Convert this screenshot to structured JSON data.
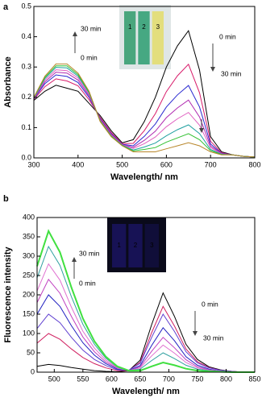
{
  "chart_data": [
    {
      "type": "line",
      "panel_label": "a",
      "xlabel": "Wavelength/ nm",
      "ylabel": "Absorbance",
      "annotations": [
        "30 min",
        "0 min",
        "0 min",
        "30 min"
      ],
      "inset_labels": [
        "1",
        "2",
        "3"
      ],
      "xlim": [
        300,
        800
      ],
      "xticks": [
        300,
        400,
        500,
        600,
        700,
        800
      ],
      "ylim": [
        0,
        0.5
      ],
      "yticks": [
        {
          "value": 0,
          "label": "0.0"
        },
        0.1,
        0.2,
        0.3,
        0.4,
        0.5
      ],
      "x": [
        300,
        325,
        350,
        375,
        400,
        425,
        450,
        475,
        500,
        525,
        550,
        575,
        600,
        625,
        650,
        675,
        700,
        725,
        750,
        775,
        800
      ],
      "series": [
        {
          "color": "#000000",
          "values": [
            0.19,
            0.22,
            0.24,
            0.23,
            0.22,
            0.18,
            0.14,
            0.09,
            0.05,
            0.06,
            0.12,
            0.2,
            0.3,
            0.37,
            0.42,
            0.29,
            0.07,
            0.02,
            0.01,
            0.005,
            0.003
          ]
        },
        {
          "color": "#d81b6a",
          "values": [
            0.193,
            0.235,
            0.261,
            0.254,
            0.238,
            0.192,
            0.134,
            0.084,
            0.047,
            0.048,
            0.09,
            0.146,
            0.219,
            0.271,
            0.309,
            0.215,
            0.055,
            0.017,
            0.01,
            0.005,
            0.003
          ]
        },
        {
          "color": "#2a2ad0",
          "values": [
            0.195,
            0.245,
            0.274,
            0.269,
            0.249,
            0.2,
            0.13,
            0.08,
            0.045,
            0.04,
            0.071,
            0.112,
            0.168,
            0.208,
            0.239,
            0.168,
            0.046,
            0.015,
            0.01,
            0.005,
            0.003
          ]
        },
        {
          "color": "#b02ab0",
          "values": [
            0.196,
            0.251,
            0.283,
            0.28,
            0.257,
            0.205,
            0.128,
            0.078,
            0.044,
            0.035,
            0.058,
            0.088,
            0.133,
            0.165,
            0.191,
            0.135,
            0.039,
            0.014,
            0.01,
            0.005,
            0.003
          ]
        },
        {
          "color": "#e060c0",
          "values": [
            0.197,
            0.257,
            0.291,
            0.288,
            0.264,
            0.209,
            0.125,
            0.075,
            0.043,
            0.031,
            0.047,
            0.069,
            0.103,
            0.129,
            0.15,
            0.108,
            0.034,
            0.013,
            0.01,
            0.005,
            0.003
          ]
        },
        {
          "color": "#20a0a0",
          "values": [
            0.198,
            0.262,
            0.299,
            0.297,
            0.27,
            0.214,
            0.123,
            0.073,
            0.042,
            0.026,
            0.036,
            0.049,
            0.073,
            0.093,
            0.109,
            0.08,
            0.028,
            0.012,
            0.01,
            0.005,
            0.003
          ]
        },
        {
          "color": "#30c030",
          "values": [
            0.199,
            0.266,
            0.304,
            0.304,
            0.275,
            0.217,
            0.122,
            0.072,
            0.041,
            0.023,
            0.028,
            0.034,
            0.052,
            0.066,
            0.08,
            0.06,
            0.024,
            0.011,
            0.01,
            0.005,
            0.003
          ]
        },
        {
          "color": "#b8862a",
          "values": [
            0.2,
            0.27,
            0.31,
            0.31,
            0.28,
            0.22,
            0.12,
            0.07,
            0.04,
            0.02,
            0.02,
            0.02,
            0.03,
            0.04,
            0.05,
            0.04,
            0.02,
            0.01,
            0.01,
            0.005,
            0.003
          ]
        }
      ]
    },
    {
      "type": "line",
      "panel_label": "b",
      "xlabel": "Wavelength/ nm",
      "ylabel": "Fluorescence intensity",
      "annotations": [
        "30 min",
        "0 min",
        "0 min",
        "30 min"
      ],
      "inset_labels": [
        "1",
        "2",
        "3"
      ],
      "xlim": [
        470,
        850
      ],
      "xticks": [
        500,
        550,
        600,
        650,
        700,
        750,
        800,
        850
      ],
      "ylim": [
        0,
        400
      ],
      "yticks": [
        0,
        50,
        100,
        150,
        200,
        250,
        300,
        350,
        400
      ],
      "x": [
        470,
        490,
        510,
        530,
        550,
        570,
        590,
        610,
        630,
        650,
        670,
        690,
        710,
        730,
        750,
        770,
        790,
        810,
        830,
        850
      ],
      "series": [
        {
          "color": "#000000",
          "values": [
            15,
            20,
            17,
            12,
            8,
            4,
            2,
            1,
            4,
            31,
            123,
            205,
            144,
            72,
            33,
            14,
            6,
            2,
            0,
            0
          ]
        },
        {
          "color": "#d02060",
          "values": [
            75,
            100,
            85,
            60,
            38,
            22,
            11,
            4,
            4,
            26,
            102,
            170,
            119,
            60,
            27,
            12,
            5,
            2,
            0,
            0
          ]
        },
        {
          "color": "#6040d0",
          "values": [
            113,
            150,
            128,
            90,
            57,
            33,
            17,
            6,
            5,
            23,
            90,
            150,
            105,
            53,
            24,
            11,
            5,
            2,
            0,
            0
          ]
        },
        {
          "color": "#2020c0",
          "values": [
            150,
            200,
            170,
            120,
            76,
            44,
            22,
            8,
            4,
            17,
            69,
            115,
            81,
            40,
            18,
            8,
            3,
            1,
            0,
            0
          ]
        },
        {
          "color": "#c040c0",
          "values": [
            180,
            240,
            204,
            144,
            91,
            53,
            26,
            10,
            4,
            14,
            54,
            90,
            63,
            32,
            14,
            6,
            3,
            1,
            0,
            0
          ]
        },
        {
          "color": "#e070d0",
          "values": [
            210,
            280,
            238,
            168,
            106,
            62,
            31,
            11,
            4,
            11,
            42,
            70,
            49,
            25,
            11,
            5,
            2,
            1,
            0,
            0
          ]
        },
        {
          "color": "#30a0a0",
          "values": [
            244,
            325,
            276,
            195,
            124,
            72,
            36,
            13,
            4,
            8,
            30,
            50,
            35,
            18,
            8,
            4,
            2,
            1,
            0,
            0
          ]
        },
        {
          "color": "#40e040",
          "values": [
            274,
            365,
            310,
            219,
            139,
            80,
            40,
            15,
            4,
            4,
            15,
            25,
            18,
            9,
            4,
            2,
            1,
            0,
            0,
            0
          ]
        }
      ]
    }
  ]
}
